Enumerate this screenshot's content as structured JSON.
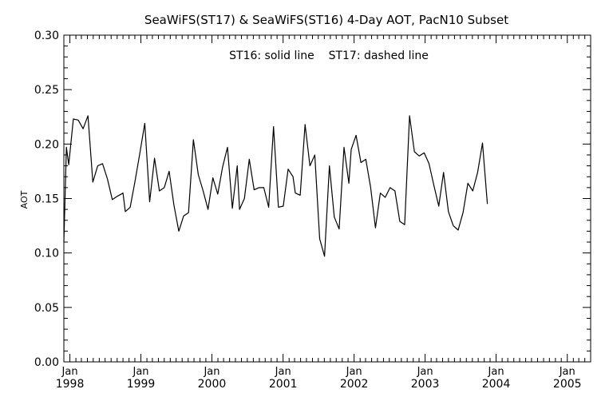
{
  "chart_data": {
    "type": "line",
    "title": "SeaWiFS(ST17) & SeaWiFS(ST16) 4-Day AOT, PacN10 Subset",
    "annotation": "ST16: solid line    ST17: dashed line",
    "ylabel": "AOT",
    "xlabel": "",
    "xlim": [
      "1997-12-01",
      "2005-05-01"
    ],
    "ylim": [
      0.0,
      0.3
    ],
    "grid": false,
    "legend": "none",
    "line_color": "#000000",
    "y_ticks": [
      "0.00",
      "0.05",
      "0.10",
      "0.15",
      "0.20",
      "0.25",
      "0.30"
    ],
    "x_ticks": [
      {
        "month": "Jan",
        "year": "1998",
        "date": "1998-01-01"
      },
      {
        "month": "Jan",
        "year": "1999",
        "date": "1999-01-01"
      },
      {
        "month": "Jan",
        "year": "2000",
        "date": "2000-01-01"
      },
      {
        "month": "Jan",
        "year": "2001",
        "date": "2001-01-01"
      },
      {
        "month": "Jan",
        "year": "2002",
        "date": "2002-01-01"
      },
      {
        "month": "Jan",
        "year": "2003",
        "date": "2003-01-01"
      },
      {
        "month": "Jan",
        "year": "2004",
        "date": "2004-01-01"
      },
      {
        "month": "Jan",
        "year": "2005",
        "date": "2005-01-01"
      }
    ],
    "series": [
      {
        "style": "solid",
        "points": [
          [
            "1997-12-01",
            0.11
          ],
          [
            "1997-12-14",
            0.197
          ],
          [
            "1997-12-26",
            0.181
          ],
          [
            "1998-01-19",
            0.223
          ],
          [
            "1998-02-13",
            0.222
          ],
          [
            "1998-03-10",
            0.214
          ],
          [
            "1998-04-04",
            0.226
          ],
          [
            "1998-04-29",
            0.165
          ],
          [
            "1998-05-24",
            0.18
          ],
          [
            "1998-06-18",
            0.182
          ],
          [
            "1998-07-13",
            0.168
          ],
          [
            "1998-08-07",
            0.149
          ],
          [
            "1998-09-01",
            0.152
          ],
          [
            "1998-10-01",
            0.155
          ],
          [
            "1998-10-13",
            0.138
          ],
          [
            "1998-11-07",
            0.142
          ],
          [
            "1998-12-02",
            0.166
          ],
          [
            "1998-12-27",
            0.192
          ],
          [
            "1999-01-21",
            0.219
          ],
          [
            "1999-02-15",
            0.147
          ],
          [
            "1999-03-12",
            0.187
          ],
          [
            "1999-04-06",
            0.157
          ],
          [
            "1999-05-01",
            0.16
          ],
          [
            "1999-05-26",
            0.175
          ],
          [
            "1999-06-20",
            0.144
          ],
          [
            "1999-07-15",
            0.12
          ],
          [
            "1999-08-09",
            0.134
          ],
          [
            "1999-09-03",
            0.137
          ],
          [
            "1999-09-28",
            0.204
          ],
          [
            "1999-10-23",
            0.172
          ],
          [
            "1999-11-17",
            0.157
          ],
          [
            "1999-12-12",
            0.14
          ],
          [
            "2000-01-06",
            0.169
          ],
          [
            "2000-01-31",
            0.154
          ],
          [
            "2000-02-25",
            0.179
          ],
          [
            "2000-03-21",
            0.197
          ],
          [
            "2000-04-15",
            0.141
          ],
          [
            "2000-05-10",
            0.18
          ],
          [
            "2000-05-22",
            0.14
          ],
          [
            "2000-06-16",
            0.15
          ],
          [
            "2000-07-11",
            0.186
          ],
          [
            "2000-08-05",
            0.158
          ],
          [
            "2000-08-30",
            0.16
          ],
          [
            "2000-09-24",
            0.16
          ],
          [
            "2000-10-19",
            0.142
          ],
          [
            "2000-11-13",
            0.216
          ],
          [
            "2000-12-08",
            0.142
          ],
          [
            "2001-01-02",
            0.143
          ],
          [
            "2001-01-27",
            0.177
          ],
          [
            "2001-02-21",
            0.17
          ],
          [
            "2001-03-05",
            0.155
          ],
          [
            "2001-03-30",
            0.153
          ],
          [
            "2001-04-24",
            0.218
          ],
          [
            "2001-05-19",
            0.18
          ],
          [
            "2001-06-13",
            0.19
          ],
          [
            "2001-07-08",
            0.113
          ],
          [
            "2001-08-02",
            0.097
          ],
          [
            "2001-08-27",
            0.18
          ],
          [
            "2001-09-21",
            0.133
          ],
          [
            "2001-10-16",
            0.122
          ],
          [
            "2001-11-10",
            0.197
          ],
          [
            "2001-12-05",
            0.164
          ],
          [
            "2001-12-17",
            0.195
          ],
          [
            "2002-01-11",
            0.208
          ],
          [
            "2002-02-05",
            0.183
          ],
          [
            "2002-03-02",
            0.186
          ],
          [
            "2002-03-27",
            0.16
          ],
          [
            "2002-04-21",
            0.123
          ],
          [
            "2002-05-16",
            0.155
          ],
          [
            "2002-06-10",
            0.151
          ],
          [
            "2002-07-05",
            0.16
          ],
          [
            "2002-07-30",
            0.157
          ],
          [
            "2002-08-24",
            0.129
          ],
          [
            "2002-09-18",
            0.126
          ],
          [
            "2002-10-13",
            0.226
          ],
          [
            "2002-11-07",
            0.193
          ],
          [
            "2002-12-02",
            0.189
          ],
          [
            "2002-12-27",
            0.192
          ],
          [
            "2003-01-21",
            0.182
          ],
          [
            "2003-02-15",
            0.162
          ],
          [
            "2003-03-12",
            0.143
          ],
          [
            "2003-04-06",
            0.174
          ],
          [
            "2003-05-01",
            0.138
          ],
          [
            "2003-05-26",
            0.125
          ],
          [
            "2003-06-20",
            0.121
          ],
          [
            "2003-07-15",
            0.137
          ],
          [
            "2003-08-09",
            0.164
          ],
          [
            "2003-09-03",
            0.157
          ],
          [
            "2003-09-28",
            0.174
          ],
          [
            "2003-10-23",
            0.201
          ],
          [
            "2003-11-17",
            0.145
          ]
        ]
      }
    ]
  }
}
